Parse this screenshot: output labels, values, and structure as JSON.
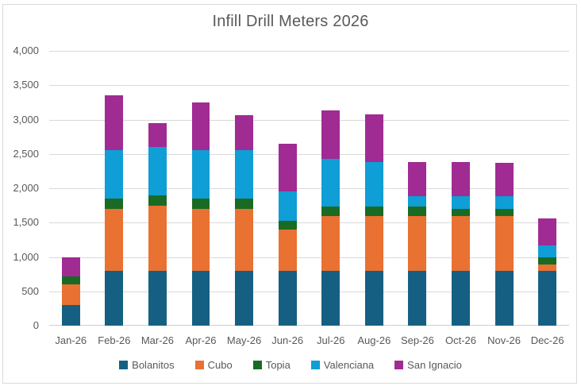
{
  "chart_data": {
    "type": "bar",
    "stacked": true,
    "title": "Infill Drill Meters 2026",
    "categories": [
      "Jan-26",
      "Feb-26",
      "Mar-26",
      "Apr-26",
      "May-26",
      "Jun-26",
      "Jul-26",
      "Aug-26",
      "Sep-26",
      "Oct-26",
      "Nov-26",
      "Dec-26"
    ],
    "series": [
      {
        "name": "Bolanitos",
        "color": "#156082",
        "values": [
          300,
          800,
          800,
          800,
          800,
          800,
          800,
          800,
          800,
          800,
          800,
          800
        ]
      },
      {
        "name": "Cubo",
        "color": "#E97132",
        "values": [
          300,
          900,
          950,
          900,
          900,
          600,
          800,
          800,
          800,
          800,
          800,
          90
        ]
      },
      {
        "name": "Topia",
        "color": "#196B24",
        "values": [
          120,
          150,
          150,
          150,
          150,
          130,
          140,
          130,
          130,
          100,
          100,
          110
        ]
      },
      {
        "name": "Valenciana",
        "color": "#0F9ED5",
        "values": [
          0,
          700,
          700,
          700,
          700,
          420,
          690,
          650,
          150,
          180,
          180,
          170
        ]
      },
      {
        "name": "San Ignacio",
        "color": "#A02B93",
        "values": [
          280,
          800,
          350,
          700,
          510,
          700,
          700,
          700,
          500,
          500,
          490,
          390
        ]
      }
    ],
    "totals": [
      1000,
      3350,
      2950,
      3250,
      3060,
      2650,
      3130,
      3080,
      2380,
      2380,
      2370,
      1560
    ],
    "ylim": [
      0,
      4000
    ],
    "ytick_step": 500,
    "ytick_labels": [
      "0",
      "500",
      "1,000",
      "1,500",
      "2,000",
      "2,500",
      "3,000",
      "3,500",
      "4,000"
    ],
    "grid": true,
    "legend_position": "bottom"
  },
  "colors": {
    "text": "#595959",
    "gridline": "#D9D9D9",
    "chart_border": "#D9D9D9",
    "background": "#FFFFFF"
  }
}
